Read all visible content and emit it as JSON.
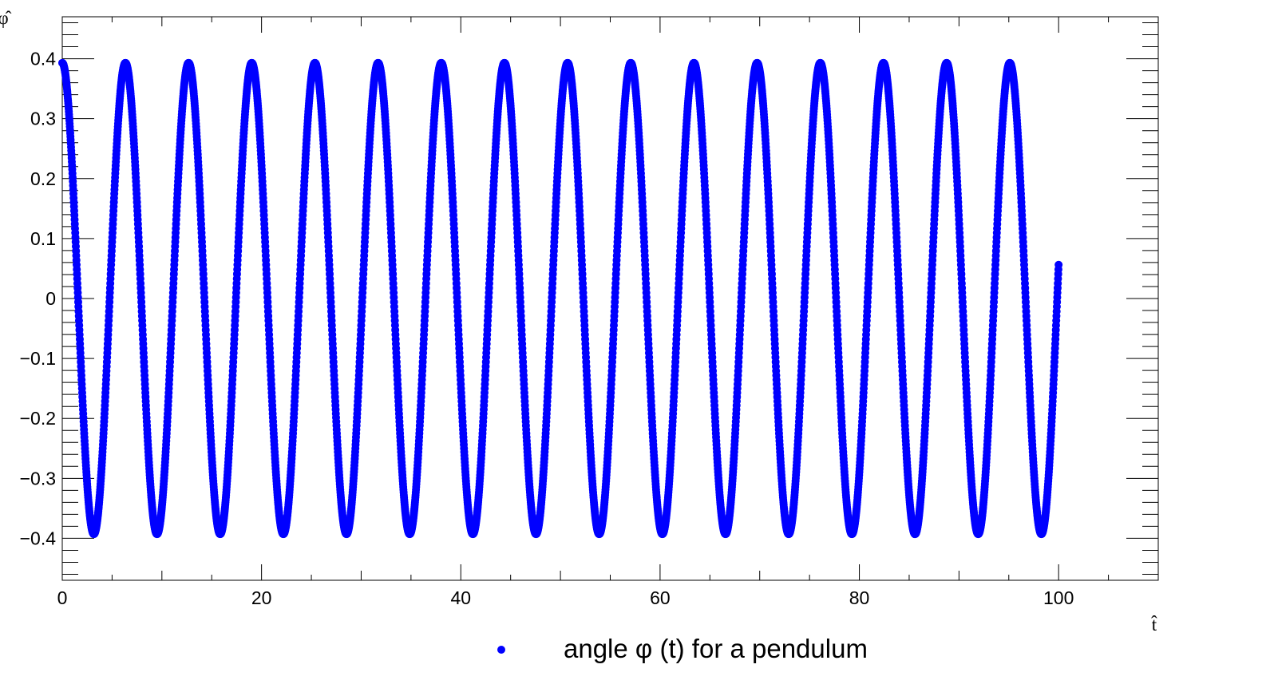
{
  "chart_data": {
    "type": "scatter",
    "title": "",
    "xlabel": "t̂",
    "ylabel": "φ̂",
    "xlim": [
      0,
      110
    ],
    "ylim": [
      -0.47,
      0.47
    ],
    "x_ticks": [
      0,
      20,
      40,
      60,
      80,
      100
    ],
    "x_tick_labels": [
      "0",
      "20",
      "40",
      "60",
      "80",
      "100"
    ],
    "y_ticks": [
      -0.4,
      -0.3,
      -0.2,
      -0.1,
      0,
      0.1,
      0.2,
      0.3,
      0.4
    ],
    "y_tick_labels": [
      "−0.4",
      "−0.3",
      "−0.2",
      "−0.1",
      "0",
      "0.1",
      "0.2",
      "0.3",
      "0.4"
    ],
    "grid": false,
    "legend_position": "bottom-center",
    "series": [
      {
        "name": "angle φ (t) for a pendulum",
        "color": "#0000ff",
        "marker": "circle",
        "x_range": [
          0,
          100
        ],
        "amplitude": 0.393,
        "period": 6.34,
        "phase": "starts at maximum (cosine-like)"
      }
    ]
  }
}
